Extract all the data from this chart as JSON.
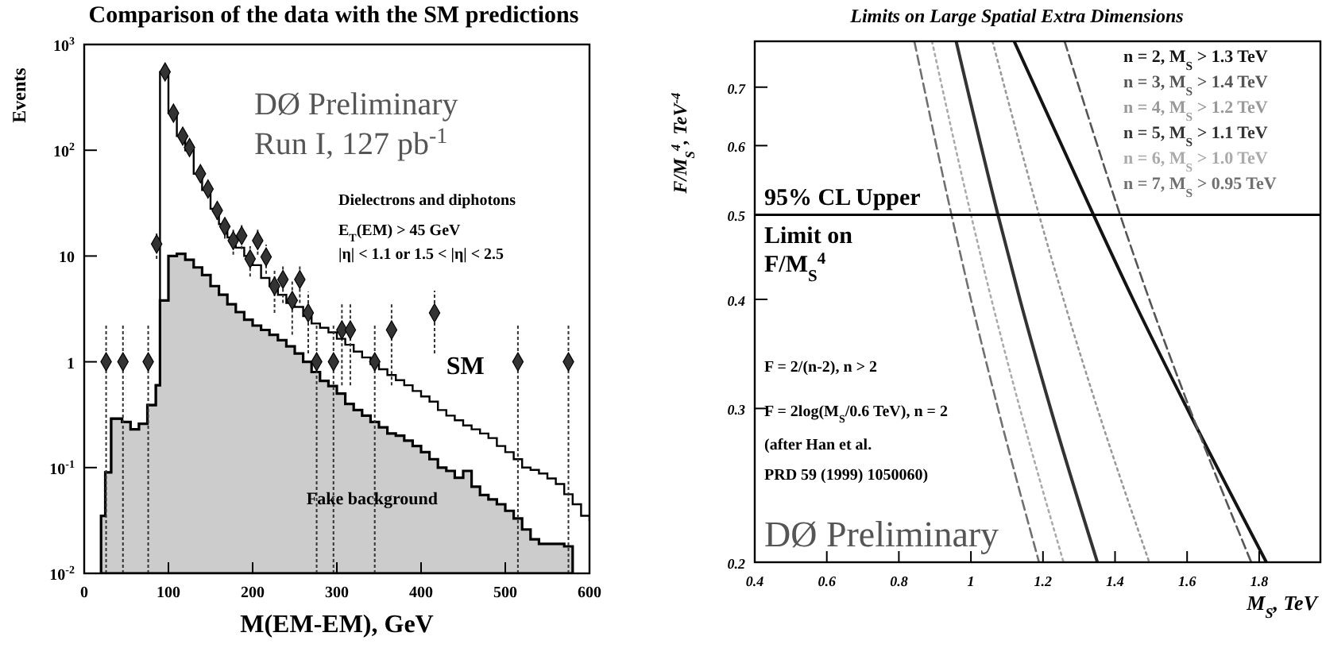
{
  "chart_data": [
    {
      "type": "step",
      "title": "Comparison of the data with the SM predictions",
      "xlabel": "M(EM-EM), GeV",
      "ylabel": "Events",
      "log": "y",
      "xlim": [
        0,
        600
      ],
      "xticks": [
        0,
        100,
        200,
        300,
        400,
        500,
        600
      ],
      "ylim": [
        0.01,
        1000
      ],
      "yticks": [
        {
          "value": 0.01,
          "label": "10$^{-2}$"
        },
        {
          "value": 0.1,
          "label": "10$^{-1}$"
        },
        1,
        10,
        {
          "value": 100,
          "label": "10$^{2}$"
        },
        {
          "value": 1000,
          "label": "10$^{3}$"
        }
      ],
      "series": [
        {
          "name": "Fake background",
          "type": "area",
          "color": "#cccccc",
          "x": [
            20,
            25,
            32,
            45,
            55,
            65,
            75,
            85,
            90,
            100,
            110,
            120,
            130,
            140,
            150,
            160,
            170,
            180,
            190,
            200,
            210,
            220,
            230,
            240,
            250,
            260,
            270,
            280,
            290,
            300,
            310,
            320,
            330,
            340,
            350,
            360,
            370,
            380,
            390,
            400,
            410,
            420,
            430,
            440,
            450,
            460,
            470,
            480,
            490,
            500,
            510,
            520,
            530,
            540,
            550,
            560,
            570,
            580
          ],
          "values": [
            0.035,
            0.09,
            0.29,
            0.27,
            0.23,
            0.26,
            0.39,
            0.6,
            3.8,
            10,
            10.5,
            9.2,
            7.8,
            6.6,
            5.2,
            4.3,
            3.5,
            2.95,
            2.5,
            2.2,
            2.0,
            1.8,
            1.6,
            1.4,
            1.2,
            1.0,
            0.8,
            0.66,
            0.59,
            0.5,
            0.4,
            0.35,
            0.31,
            0.27,
            0.24,
            0.21,
            0.2,
            0.18,
            0.16,
            0.14,
            0.12,
            0.1,
            0.093,
            0.08,
            0.093,
            0.066,
            0.055,
            0.05,
            0.045,
            0.039,
            0.033,
            0.026,
            0.021,
            0.019,
            0.019,
            0.019,
            0.018,
            0.018
          ]
        },
        {
          "name": "SM",
          "color": "#000000",
          "x": [
            20,
            25,
            32,
            45,
            55,
            65,
            75,
            85,
            90,
            100,
            110,
            120,
            130,
            140,
            150,
            160,
            170,
            180,
            190,
            200,
            210,
            220,
            230,
            240,
            250,
            260,
            270,
            280,
            290,
            300,
            310,
            320,
            330,
            340,
            350,
            360,
            370,
            380,
            390,
            400,
            410,
            420,
            430,
            440,
            450,
            460,
            470,
            480,
            490,
            500,
            510,
            520,
            530,
            540,
            550,
            560,
            570,
            580,
            590,
            600
          ],
          "values": [
            0.035,
            0.09,
            0.29,
            0.27,
            0.23,
            0.26,
            0.39,
            0.6,
            550,
            224,
            136,
            100,
            60,
            42,
            28,
            20,
            15,
            12,
            10,
            8.2,
            6.2,
            5.2,
            4.3,
            3.6,
            3.3,
            2.7,
            2.3,
            2.1,
            1.9,
            1.65,
            1.45,
            1.25,
            1.1,
            0.95,
            0.85,
            0.75,
            0.67,
            0.6,
            0.53,
            0.47,
            0.42,
            0.35,
            0.31,
            0.28,
            0.25,
            0.23,
            0.21,
            0.19,
            0.16,
            0.14,
            0.12,
            0.1,
            0.095,
            0.088,
            0.079,
            0.07,
            0.056,
            0.045,
            0.035,
            0.031
          ]
        },
        {
          "type": "scatter",
          "color": "#333333",
          "marker": "diamond",
          "x": [
            26,
            46,
            76,
            86,
            96,
            106,
            117,
            125,
            138,
            147,
            158,
            167,
            177,
            187,
            197,
            206,
            216,
            226,
            236,
            247,
            256,
            266,
            276,
            296,
            306,
            316,
            345,
            365,
            416,
            515,
            575
          ],
          "values": [
            1,
            1,
            1,
            13,
            550,
            224,
            136,
            106,
            60,
            43,
            27,
            19,
            14,
            15.6,
            9.4,
            14,
            9.8,
            5.2,
            6,
            3.8,
            6,
            2.9,
            1,
            1,
            2,
            2,
            1,
            2,
            2.9,
            1,
            1
          ],
          "errors": [
            [
              0.01,
              2.3
            ],
            [
              0.01,
              2.3
            ],
            [
              0.01,
              2.3
            ],
            3.6,
            23,
            15,
            12,
            10,
            8,
            6.5,
            5,
            4.4,
            3.7,
            4,
            3,
            3.7,
            3,
            2.3,
            2.4,
            2,
            2.4,
            1.7,
            [
              0.01,
              2.3
            ],
            [
              0.01,
              2.3
            ],
            [
              0.6,
              3.5
            ],
            [
              0.6,
              3.5
            ],
            [
              0.01,
              2.3
            ],
            [
              0.6,
              3.5
            ],
            [
              1.2,
              4.7
            ],
            [
              0.01,
              2.3
            ],
            [
              0.01,
              2.3
            ]
          ]
        }
      ],
      "annotations": [
        "DØ Preliminary",
        "Run I, 127 pb$^{-1}$",
        "Dielectrons and diphotons",
        "E$_{T}$(EM) > 45 GeV",
        "|η| < 1.1 or 1.5 < |η| < 2.5"
      ]
    },
    {
      "type": "line",
      "title": "Limits on Large Spatial Extra Dimensions",
      "xlabel": "M$_{S}$, TeV",
      "ylabel": "F/M$_{S}$$^{4}$, TeV$^{-4}$",
      "log": "y",
      "legend": "top right",
      "xlim": [
        0.4,
        1.97
      ],
      "xticks": [
        0.4,
        0.6,
        0.8,
        1,
        1.2,
        1.4,
        1.6,
        1.8
      ],
      "ylim": [
        0.2,
        0.79
      ],
      "yticks": [
        0.2,
        0.3,
        0.4,
        0.5,
        0.6,
        0.7
      ],
      "series": [
        {
          "name": "n = 2, M$_{S}$ > 1.3 TeV",
          "color": "#141414",
          "line_style": "solid",
          "x": [
            1.12,
            1.34,
            1.45,
            1.6,
            1.82
          ],
          "values": [
            0.79,
            0.5,
            0.4,
            0.3,
            0.2
          ]
        },
        {
          "name": "n = 3, M$_{S}$ > 1.4 TeV",
          "color": "#555555",
          "line_style": "dashed",
          "x": [
            1.26,
            1.414,
            1.495,
            1.607,
            1.778
          ],
          "values": [
            0.79,
            0.5,
            0.4,
            0.3,
            0.2
          ]
        },
        {
          "name": "n = 4, M$_{S}$ > 1.2 TeV",
          "color": "#999999",
          "line_style": "dotted",
          "x": [
            1.06,
            1.189,
            1.257,
            1.351,
            1.495
          ],
          "values": [
            0.79,
            0.5,
            0.4,
            0.3,
            0.2
          ]
        },
        {
          "name": "n = 5, M$_{S}$ > 1.1 TeV",
          "color": "#333333",
          "line_style": "solid",
          "x": [
            0.959,
            1.075,
            1.136,
            1.221,
            1.351
          ],
          "values": [
            0.79,
            0.5,
            0.4,
            0.3,
            0.2
          ]
        },
        {
          "name": "n = 6, M$_{S}$ > 1.0 TeV",
          "color": "#aaaaaa",
          "line_style": "dotted",
          "x": [
            0.892,
            1.0,
            1.057,
            1.136,
            1.257
          ],
          "values": [
            0.79,
            0.5,
            0.4,
            0.3,
            0.2
          ]
        },
        {
          "name": "n = 7, M$_{S}$ > 0.95 TeV",
          "color": "#707070",
          "line_style": "dashed",
          "x": [
            0.843,
            0.946,
            1.0,
            1.075,
            1.189
          ],
          "values": [
            0.79,
            0.5,
            0.4,
            0.3,
            0.2
          ]
        }
      ],
      "ref_lines": [
        {
          "axis": "y",
          "value": 0.5,
          "label": "95% CL Upper Limit on F/M$_{S}$$^{4}$",
          "color": "#000000"
        }
      ],
      "annotations": [
        "F = 2/(n-2), n > 2",
        "F = 2log(M$_{S}$/0.6 TeV), n = 2",
        "(after Han et al.",
        "PRD 59 (1999) 1050060)",
        "DØ Preliminary"
      ]
    }
  ]
}
